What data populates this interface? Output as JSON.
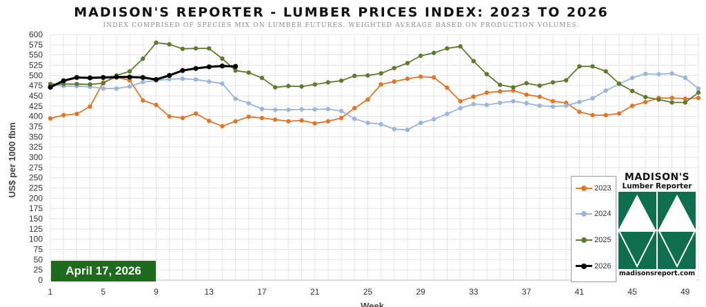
{
  "title": "MADISON'S REPORTER - LUMBER PRICES INDEX: 2023 TO 2026",
  "subtitle": "INDEX COMPRISED OF SPECIES MIX ON LUMBER FUTURES. WEIGHTED AVERAGE BASED ON PRODUCTION VOLUMES.",
  "date_badge": "April 17, 2026",
  "logo": {
    "title": "MADISON'S",
    "subtitle": "Lumber Reporter",
    "url": "madisonsreport.com"
  },
  "colors": {
    "2023": "#e0762a",
    "2024": "#9bb6d8",
    "2025": "#5e7a2e",
    "2026": "#000000",
    "badge": "#1e6b1e",
    "logo_green": "#0e6e4e",
    "grid": "#e3e3e3"
  },
  "chart_data": {
    "type": "line",
    "title": "MADISON'S REPORTER - LUMBER PRICES INDEX: 2023 TO 2026",
    "xlabel": "Week",
    "ylabel": "US$ per 1000 fbm",
    "xlim": [
      1,
      50
    ],
    "ylim": [
      0,
      600
    ],
    "x_ticks": [
      1,
      5,
      9,
      13,
      17,
      21,
      25,
      29,
      33,
      37,
      41,
      45,
      49
    ],
    "y_ticks": [
      0,
      25,
      50,
      75,
      100,
      125,
      150,
      175,
      200,
      225,
      250,
      275,
      300,
      325,
      350,
      375,
      400,
      425,
      450,
      475,
      500,
      525,
      550,
      575,
      600
    ],
    "grid": true,
    "legend_position": "bottom-right",
    "series": [
      {
        "name": "2023",
        "x": [
          1,
          2,
          3,
          4,
          5,
          6,
          7,
          8,
          9,
          10,
          11,
          12,
          13,
          14,
          15,
          16,
          17,
          18,
          19,
          20,
          21,
          22,
          23,
          24,
          25,
          26,
          27,
          28,
          29,
          30,
          31,
          32,
          33,
          34,
          35,
          36,
          37,
          38,
          39,
          40,
          41,
          42,
          43,
          44,
          45,
          46,
          47,
          48,
          49,
          50
        ],
        "values": [
          395,
          403,
          406,
          424,
          483,
          496,
          488,
          439,
          428,
          400,
          396,
          407,
          389,
          376,
          388,
          399,
          396,
          392,
          388,
          390,
          383,
          388,
          396,
          420,
          441,
          478,
          485,
          492,
          497,
          495,
          470,
          437,
          448,
          458,
          461,
          463,
          453,
          448,
          437,
          433,
          411,
          403,
          403,
          407,
          426,
          435,
          445,
          445,
          443,
          445
        ]
      },
      {
        "name": "2024",
        "x": [
          1,
          2,
          3,
          4,
          5,
          6,
          7,
          8,
          9,
          10,
          11,
          12,
          13,
          14,
          15,
          16,
          17,
          18,
          19,
          20,
          21,
          22,
          23,
          24,
          25,
          26,
          27,
          28,
          29,
          30,
          31,
          32,
          33,
          34,
          35,
          36,
          37,
          38,
          39,
          40,
          41,
          42,
          43,
          44,
          45,
          46,
          47,
          48,
          49,
          50
        ],
        "values": [
          478,
          474,
          474,
          472,
          468,
          468,
          473,
          484,
          487,
          491,
          492,
          490,
          485,
          480,
          443,
          432,
          418,
          416,
          416,
          417,
          417,
          418,
          413,
          394,
          384,
          381,
          369,
          367,
          384,
          393,
          406,
          420,
          430,
          428,
          433,
          437,
          432,
          426,
          424,
          426,
          435,
          444,
          463,
          479,
          494,
          504,
          503,
          505,
          494,
          468
        ]
      },
      {
        "name": "2025",
        "x": [
          1,
          2,
          3,
          4,
          5,
          6,
          7,
          8,
          9,
          10,
          11,
          12,
          13,
          14,
          15,
          16,
          17,
          18,
          19,
          20,
          21,
          22,
          23,
          24,
          25,
          26,
          27,
          28,
          29,
          30,
          31,
          32,
          33,
          34,
          35,
          36,
          37,
          38,
          39,
          40,
          41,
          42,
          43,
          44,
          45,
          46,
          47,
          48,
          49,
          50
        ],
        "values": [
          479,
          479,
          479,
          478,
          481,
          500,
          510,
          541,
          580,
          576,
          565,
          566,
          566,
          541,
          512,
          507,
          494,
          471,
          474,
          473,
          478,
          483,
          487,
          499,
          500,
          505,
          518,
          530,
          548,
          555,
          566,
          571,
          535,
          503,
          477,
          471,
          481,
          475,
          483,
          488,
          522,
          522,
          510,
          480,
          462,
          447,
          441,
          434,
          434,
          458
        ]
      },
      {
        "name": "2026",
        "x": [
          1,
          2,
          3,
          4,
          5,
          6,
          7,
          8,
          9,
          10,
          11,
          12,
          13,
          14,
          15
        ],
        "values": [
          471,
          487,
          495,
          494,
          495,
          496,
          496,
          495,
          490,
          500,
          512,
          517,
          521,
          523,
          522
        ]
      }
    ]
  }
}
